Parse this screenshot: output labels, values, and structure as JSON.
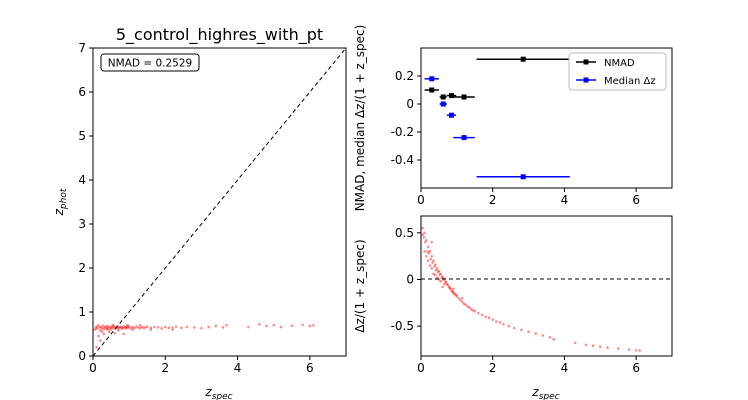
{
  "chart_data": [
    {
      "id": "left",
      "type": "scatter",
      "title": "5_control_highres_with_pt",
      "annotation": "NMAD = 0.2529",
      "xlabel": {
        "main": "z",
        "sub": "spec"
      },
      "ylabel": {
        "main": "z",
        "sub": "phot"
      },
      "xlim": [
        0,
        7
      ],
      "ylim": [
        0,
        7
      ],
      "xticks": [
        0,
        2,
        4,
        6
      ],
      "yticks": [
        0,
        1,
        2,
        3,
        4,
        5,
        6,
        7
      ],
      "reference_line": "y = x",
      "point_color": "#ff0000",
      "points": [
        [
          0.05,
          0.6
        ],
        [
          0.08,
          0.64
        ],
        [
          0.1,
          0.67
        ],
        [
          0.12,
          0.62
        ],
        [
          0.15,
          0.7
        ],
        [
          0.18,
          0.65
        ],
        [
          0.2,
          0.58
        ],
        [
          0.22,
          0.66
        ],
        [
          0.25,
          0.63
        ],
        [
          0.28,
          0.69
        ],
        [
          0.3,
          0.61
        ],
        [
          0.32,
          0.66
        ],
        [
          0.35,
          0.64
        ],
        [
          0.38,
          0.68
        ],
        [
          0.4,
          0.62
        ],
        [
          0.42,
          0.65
        ],
        [
          0.45,
          0.67
        ],
        [
          0.48,
          0.6
        ],
        [
          0.5,
          0.64
        ],
        [
          0.52,
          0.66
        ],
        [
          0.55,
          0.63
        ],
        [
          0.58,
          0.68
        ],
        [
          0.6,
          0.65
        ],
        [
          0.62,
          0.62
        ],
        [
          0.65,
          0.66
        ],
        [
          0.68,
          0.64
        ],
        [
          0.7,
          0.67
        ],
        [
          0.72,
          0.63
        ],
        [
          0.75,
          0.65
        ],
        [
          0.78,
          0.66
        ],
        [
          0.8,
          0.64
        ],
        [
          0.82,
          0.62
        ],
        [
          0.85,
          0.67
        ],
        [
          0.88,
          0.65
        ],
        [
          0.9,
          0.63
        ],
        [
          0.92,
          0.66
        ],
        [
          0.95,
          0.64
        ],
        [
          0.98,
          0.68
        ],
        [
          1.0,
          0.65
        ],
        [
          1.05,
          0.63
        ],
        [
          1.1,
          0.66
        ],
        [
          1.15,
          0.64
        ],
        [
          1.2,
          0.67
        ],
        [
          1.25,
          0.65
        ],
        [
          1.3,
          0.63
        ],
        [
          1.35,
          0.66
        ],
        [
          1.4,
          0.64
        ],
        [
          1.45,
          0.65
        ],
        [
          1.5,
          0.67
        ],
        [
          1.6,
          0.64
        ],
        [
          1.7,
          0.66
        ],
        [
          1.8,
          0.65
        ],
        [
          1.9,
          0.63
        ],
        [
          2.0,
          0.66
        ],
        [
          2.1,
          0.64
        ],
        [
          2.2,
          0.65
        ],
        [
          2.3,
          0.67
        ],
        [
          2.45,
          0.64
        ],
        [
          2.6,
          0.66
        ],
        [
          2.8,
          0.65
        ],
        [
          3.0,
          0.63
        ],
        [
          3.2,
          0.66
        ],
        [
          3.4,
          0.68
        ],
        [
          3.6,
          0.65
        ],
        [
          3.7,
          0.7
        ],
        [
          4.3,
          0.66
        ],
        [
          4.6,
          0.72
        ],
        [
          4.8,
          0.68
        ],
        [
          5.0,
          0.7
        ],
        [
          5.2,
          0.66
        ],
        [
          5.5,
          0.69
        ],
        [
          5.8,
          0.71
        ],
        [
          6.0,
          0.68
        ],
        [
          6.1,
          0.7
        ],
        [
          0.15,
          0.45
        ],
        [
          0.3,
          0.5
        ],
        [
          0.45,
          0.55
        ],
        [
          0.6,
          0.52
        ],
        [
          0.85,
          0.5
        ],
        [
          0.2,
          0.35
        ],
        [
          0.4,
          0.6
        ],
        [
          0.7,
          0.58
        ],
        [
          1.1,
          0.6
        ],
        [
          1.6,
          0.6
        ],
        [
          2.2,
          0.6
        ],
        [
          0.1,
          0.2
        ],
        [
          0.25,
          0.55
        ],
        [
          0.55,
          0.7
        ],
        [
          0.95,
          0.7
        ],
        [
          1.3,
          0.7
        ]
      ]
    },
    {
      "id": "top-right",
      "type": "scatter",
      "ylabel": "NMAD, median Δz/(1 + z_spec)",
      "xlim": [
        0,
        7
      ],
      "ylim": [
        -0.6,
        0.4
      ],
      "xticks": [
        0,
        2,
        4,
        6
      ],
      "yticks": [
        -0.4,
        -0.2,
        0.0,
        0.2
      ],
      "legend_position": "top-right",
      "series": [
        {
          "name": "NMAD",
          "color": "#000000",
          "points": [
            {
              "x": 0.3,
              "y": 0.1,
              "xerr": 0.2
            },
            {
              "x": 0.62,
              "y": 0.05,
              "xerr": 0.1
            },
            {
              "x": 0.85,
              "y": 0.06,
              "xerr": 0.13
            },
            {
              "x": 1.2,
              "y": 0.05,
              "xerr": 0.3
            },
            {
              "x": 2.85,
              "y": 0.32,
              "xerr": 1.3
            }
          ]
        },
        {
          "name": "Median Δz",
          "color": "#0000ff",
          "points": [
            {
              "x": 0.3,
              "y": 0.18,
              "xerr": 0.2
            },
            {
              "x": 0.62,
              "y": 0.0,
              "xerr": 0.1
            },
            {
              "x": 0.85,
              "y": -0.08,
              "xerr": 0.13
            },
            {
              "x": 1.2,
              "y": -0.24,
              "xerr": 0.3
            },
            {
              "x": 2.85,
              "y": -0.52,
              "xerr": 1.3
            }
          ]
        }
      ]
    },
    {
      "id": "bottom-right",
      "type": "scatter",
      "xlabel": {
        "main": "z",
        "sub": "spec"
      },
      "ylabel": "Δz/(1 + z_spec)",
      "xlim": [
        0,
        7
      ],
      "ylim": [
        -0.82,
        0.68
      ],
      "xticks": [
        0,
        2,
        4,
        6
      ],
      "yticks": [
        -0.5,
        0.0,
        0.5
      ],
      "reference_line": "y = 0",
      "point_color": "#ff0000",
      "points": [
        [
          0.05,
          0.48
        ],
        [
          0.08,
          0.45
        ],
        [
          0.1,
          0.5
        ],
        [
          0.12,
          0.4
        ],
        [
          0.15,
          0.42
        ],
        [
          0.18,
          0.3
        ],
        [
          0.2,
          0.35
        ],
        [
          0.22,
          0.28
        ],
        [
          0.25,
          0.3
        ],
        [
          0.28,
          0.22
        ],
        [
          0.3,
          0.25
        ],
        [
          0.32,
          0.18
        ],
        [
          0.35,
          0.2
        ],
        [
          0.38,
          0.14
        ],
        [
          0.4,
          0.16
        ],
        [
          0.42,
          0.1
        ],
        [
          0.45,
          0.12
        ],
        [
          0.48,
          0.08
        ],
        [
          0.5,
          0.09
        ],
        [
          0.52,
          0.05
        ],
        [
          0.55,
          0.06
        ],
        [
          0.58,
          0.02
        ],
        [
          0.6,
          0.03
        ],
        [
          0.62,
          0.0
        ],
        [
          0.65,
          0.01
        ],
        [
          0.68,
          -0.02
        ],
        [
          0.7,
          -0.03
        ],
        [
          0.72,
          -0.05
        ],
        [
          0.75,
          -0.06
        ],
        [
          0.78,
          -0.08
        ],
        [
          0.8,
          -0.09
        ],
        [
          0.82,
          -0.1
        ],
        [
          0.85,
          -0.12
        ],
        [
          0.88,
          -0.13
        ],
        [
          0.9,
          -0.14
        ],
        [
          0.92,
          -0.15
        ],
        [
          0.95,
          -0.16
        ],
        [
          0.98,
          -0.17
        ],
        [
          1.0,
          -0.18
        ],
        [
          1.05,
          -0.2
        ],
        [
          1.1,
          -0.22
        ],
        [
          1.15,
          -0.24
        ],
        [
          1.2,
          -0.26
        ],
        [
          1.25,
          -0.27
        ],
        [
          1.3,
          -0.29
        ],
        [
          1.35,
          -0.3
        ],
        [
          1.4,
          -0.32
        ],
        [
          1.45,
          -0.33
        ],
        [
          1.5,
          -0.34
        ],
        [
          1.6,
          -0.36
        ],
        [
          1.7,
          -0.38
        ],
        [
          1.8,
          -0.4
        ],
        [
          1.9,
          -0.41
        ],
        [
          2.0,
          -0.43
        ],
        [
          2.1,
          -0.45
        ],
        [
          2.2,
          -0.46
        ],
        [
          2.3,
          -0.48
        ],
        [
          2.45,
          -0.5
        ],
        [
          2.6,
          -0.52
        ],
        [
          2.8,
          -0.54
        ],
        [
          3.0,
          -0.56
        ],
        [
          3.2,
          -0.58
        ],
        [
          3.4,
          -0.6
        ],
        [
          3.6,
          -0.62
        ],
        [
          3.7,
          -0.64
        ],
        [
          4.3,
          -0.68
        ],
        [
          4.6,
          -0.7
        ],
        [
          4.8,
          -0.71
        ],
        [
          5.0,
          -0.72
        ],
        [
          5.2,
          -0.73
        ],
        [
          5.5,
          -0.74
        ],
        [
          5.8,
          -0.75
        ],
        [
          6.0,
          -0.76
        ],
        [
          6.1,
          -0.76
        ],
        [
          0.1,
          0.3
        ],
        [
          0.2,
          0.2
        ],
        [
          0.3,
          0.12
        ],
        [
          0.4,
          0.05
        ],
        [
          0.5,
          0.0
        ],
        [
          0.15,
          0.25
        ],
        [
          0.25,
          0.15
        ],
        [
          0.35,
          0.06
        ],
        [
          0.45,
          0.02
        ],
        [
          0.55,
          -0.02
        ],
        [
          0.65,
          -0.05
        ],
        [
          0.3,
          0.4
        ],
        [
          0.6,
          -0.08
        ],
        [
          0.9,
          -0.1
        ],
        [
          1.15,
          -0.2
        ],
        [
          0.05,
          0.55
        ]
      ]
    }
  ]
}
